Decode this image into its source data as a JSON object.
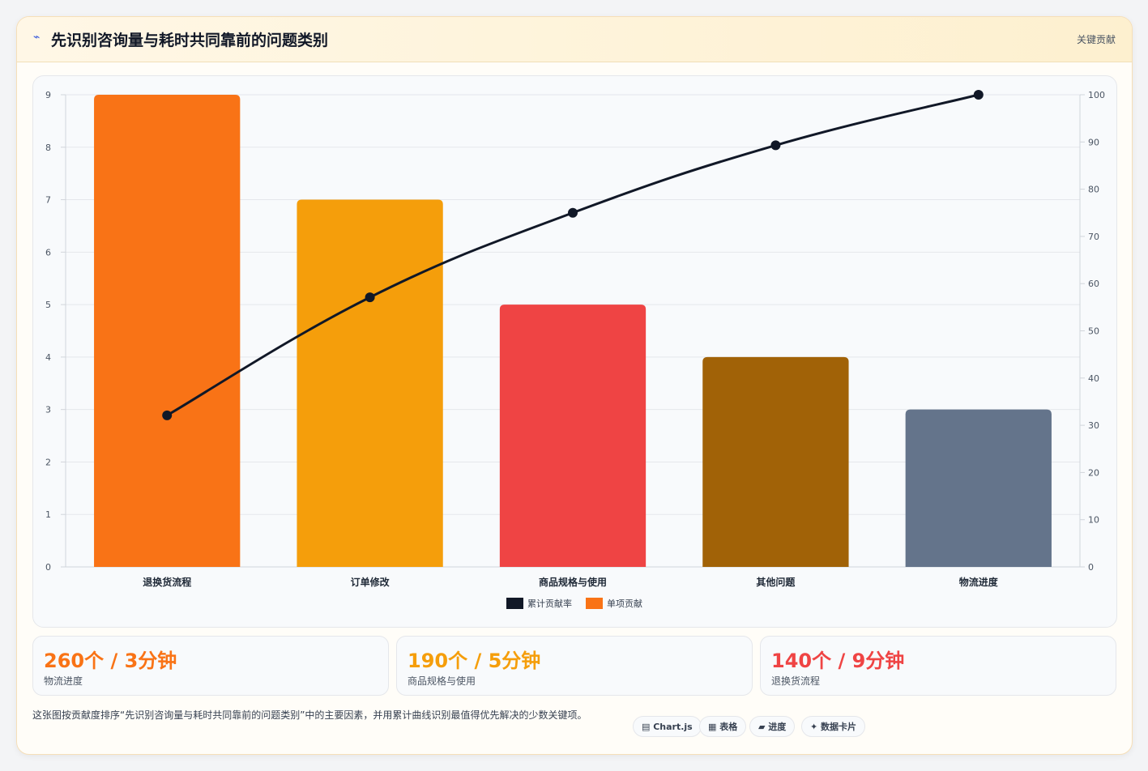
{
  "header": {
    "icon": "lightning-icon",
    "title": "先识别咨询量与耗时共同靠前的问题类别",
    "badge": "关键贡献"
  },
  "chart_data": {
    "type": "bar",
    "categories": [
      "退换货流程",
      "订单修改",
      "商品规格与使用",
      "其他问题",
      "物流进度"
    ],
    "series": [
      {
        "name": "单项贡献",
        "type": "bar",
        "axis": "left",
        "values": [
          9,
          7,
          5,
          4,
          3
        ],
        "colors": [
          "#f97316",
          "#f59e0b",
          "#ef4444",
          "#a16207",
          "#64748b"
        ]
      },
      {
        "name": "累计贡献率",
        "type": "line",
        "axis": "right",
        "values": [
          32.1,
          57.1,
          75.0,
          89.3,
          100
        ],
        "color": "#111827"
      }
    ],
    "y_left": {
      "ylim": [
        0,
        9
      ],
      "ticks": [
        "0",
        "1",
        "2",
        "3",
        "4",
        "5",
        "6",
        "7",
        "8",
        "9"
      ]
    },
    "y_right": {
      "ylim": [
        0,
        100
      ],
      "ticks": [
        "0",
        "10",
        "20",
        "30",
        "40",
        "50",
        "60",
        "70",
        "80",
        "90",
        "100"
      ]
    },
    "grid": true,
    "legend": {
      "placement": "bottom",
      "entries": [
        "累计贡献率",
        "单项贡献"
      ]
    }
  },
  "stats": [
    {
      "value": "260个 / 3分钟",
      "label": "物流进度",
      "color": "#f97316"
    },
    {
      "value": "190个 / 5分钟",
      "label": "商品规格与使用",
      "color": "#f59e0b"
    },
    {
      "value": "140个 / 9分钟",
      "label": "退换货流程",
      "color": "#ef4444"
    }
  ],
  "footer": {
    "description": "这张图按贡献度排序“先识别咨询量与耗时共同靠前的问题类别”中的主要因素，并用累计曲线识别最值得优先解决的少数关键项。",
    "tags": [
      "▤ Chart.js",
      "▦ 表格",
      "▰ 进度",
      "✦ 数据卡片"
    ]
  }
}
